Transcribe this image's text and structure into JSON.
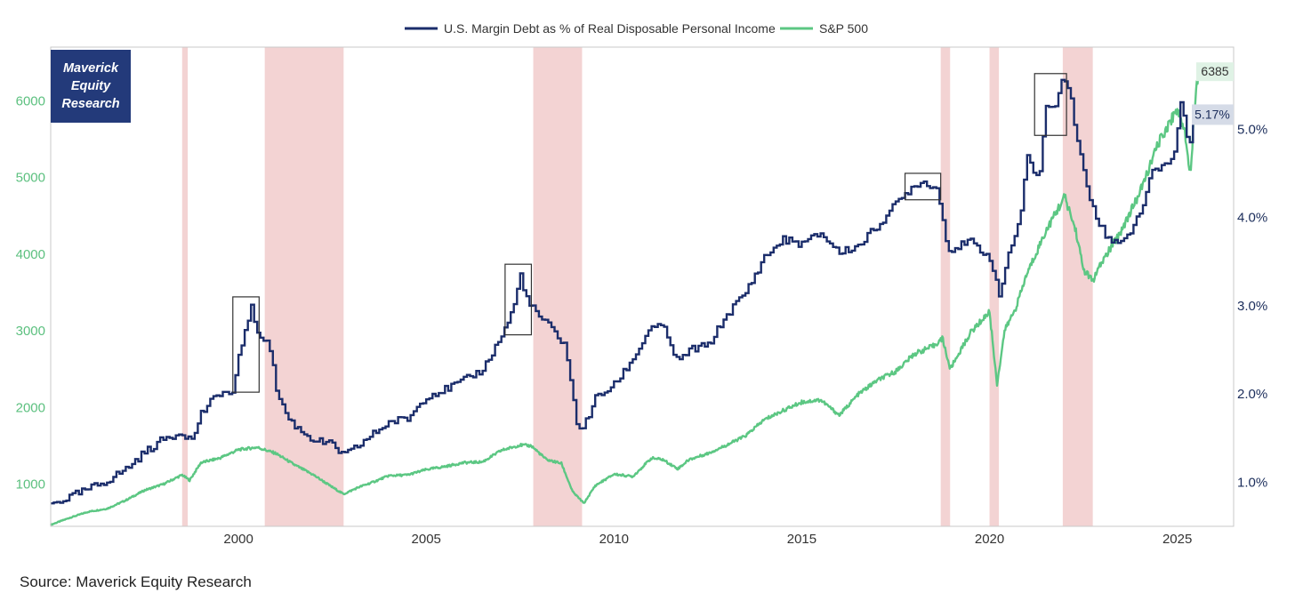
{
  "logo": {
    "line1": "Maverick",
    "line2": "Equity",
    "line3": "Research"
  },
  "source": "Source: Maverick Equity Research",
  "colors": {
    "margin": "#1b2d6b",
    "sp500": "#5cc783",
    "recession": "#f3d3d3",
    "box": "#333333"
  },
  "chart_data": {
    "type": "line",
    "title": "",
    "legend_position": "top-center",
    "grid": false,
    "x_ticks": [
      2000,
      2005,
      2010,
      2015,
      2020,
      2025
    ],
    "xlim": [
      1995.0,
      2026.5
    ],
    "y_left": {
      "ticks": [
        1000,
        2000,
        3000,
        4000,
        5000,
        6000
      ],
      "range": [
        450,
        6700
      ]
    },
    "y_right": {
      "ticks": [
        "1.0%",
        "2.0%",
        "3.0%",
        "4.0%",
        "5.0%"
      ],
      "tick_values": [
        1.0,
        2.0,
        3.0,
        4.0,
        5.0
      ],
      "range": [
        0.5,
        5.93
      ]
    },
    "recessions": [
      [
        1998.5,
        1998.65
      ],
      [
        2000.7,
        2002.8
      ],
      [
        2007.85,
        2009.15
      ],
      [
        2018.7,
        2018.95
      ],
      [
        2020.0,
        2020.25
      ],
      [
        2021.95,
        2022.75
      ]
    ],
    "highlight_boxes": [
      {
        "x": [
          1999.85,
          2000.55
        ],
        "y_right": [
          2.02,
          3.1
        ]
      },
      {
        "x": [
          2007.1,
          2007.8
        ],
        "y_right": [
          2.67,
          3.47
        ]
      },
      {
        "x": [
          2017.75,
          2018.7
        ],
        "y_right": [
          4.2,
          4.5
        ]
      },
      {
        "x": [
          2021.2,
          2022.05
        ],
        "y_right": [
          4.93,
          5.63
        ]
      }
    ],
    "series": [
      {
        "name": "U.S. Margin Debt as % of Real Disposable Personal Income",
        "axis": "right",
        "x": [
          1995.0,
          1995.5,
          1996.0,
          1996.5,
          1997.0,
          1997.5,
          1998.0,
          1998.5,
          1998.75,
          1999.0,
          1999.5,
          1999.85,
          2000.0,
          2000.2,
          2000.35,
          2000.5,
          2000.8,
          2001.0,
          2001.3,
          2001.6,
          2002.0,
          2002.5,
          2002.8,
          2003.0,
          2003.5,
          2004.0,
          2004.5,
          2005.0,
          2005.5,
          2006.0,
          2006.5,
          2007.0,
          2007.3,
          2007.5,
          2007.7,
          2008.0,
          2008.3,
          2008.7,
          2009.0,
          2009.2,
          2009.5,
          2010.0,
          2010.5,
          2011.0,
          2011.3,
          2011.7,
          2012.0,
          2012.5,
          2013.0,
          2013.5,
          2014.0,
          2014.5,
          2015.0,
          2015.5,
          2016.0,
          2016.5,
          2017.0,
          2017.5,
          2018.0,
          2018.3,
          2018.6,
          2018.9,
          2019.0,
          2019.5,
          2020.0,
          2020.25,
          2020.5,
          2020.8,
          2021.0,
          2021.3,
          2021.5,
          2021.7,
          2021.9,
          2022.1,
          2022.3,
          2022.6,
          2022.9,
          2023.2,
          2023.5,
          2023.8,
          2024.0,
          2024.3,
          2024.6,
          2024.9,
          2025.1,
          2025.3,
          2025.45
        ],
        "values": [
          0.75,
          0.83,
          0.92,
          1.02,
          1.15,
          1.34,
          1.49,
          1.57,
          1.47,
          1.78,
          2.02,
          2.0,
          2.4,
          2.8,
          3.0,
          2.65,
          2.62,
          2.05,
          1.73,
          1.6,
          1.48,
          1.42,
          1.3,
          1.35,
          1.52,
          1.68,
          1.72,
          1.98,
          2.05,
          2.15,
          2.28,
          2.66,
          2.95,
          3.35,
          3.03,
          2.88,
          2.75,
          2.55,
          1.65,
          1.63,
          1.95,
          2.1,
          2.4,
          2.78,
          2.75,
          2.35,
          2.5,
          2.55,
          2.9,
          3.15,
          3.55,
          3.75,
          3.7,
          3.82,
          3.6,
          3.68,
          3.9,
          4.15,
          4.38,
          4.4,
          4.32,
          3.62,
          3.65,
          3.72,
          3.55,
          3.1,
          3.6,
          3.94,
          4.72,
          4.4,
          5.27,
          5.2,
          5.58,
          5.5,
          4.95,
          4.3,
          3.95,
          3.72,
          3.75,
          3.86,
          4.05,
          4.5,
          4.6,
          4.68,
          5.35,
          4.78,
          5.17
        ]
      },
      {
        "name": "S&P 500",
        "axis": "left",
        "x": [
          1995.0,
          1995.5,
          1996.0,
          1996.5,
          1997.0,
          1997.5,
          1998.0,
          1998.5,
          1998.7,
          1999.0,
          1999.5,
          2000.0,
          2000.5,
          2001.0,
          2001.5,
          2002.0,
          2002.5,
          2002.8,
          2003.2,
          2003.6,
          2004.0,
          2004.5,
          2005.0,
          2005.5,
          2006.0,
          2006.5,
          2007.0,
          2007.5,
          2007.8,
          2008.2,
          2008.6,
          2008.9,
          2009.2,
          2009.5,
          2010.0,
          2010.5,
          2011.0,
          2011.3,
          2011.7,
          2012.0,
          2012.5,
          2013.0,
          2013.5,
          2014.0,
          2014.5,
          2015.0,
          2015.5,
          2016.0,
          2016.5,
          2017.0,
          2017.5,
          2018.0,
          2018.5,
          2018.75,
          2018.95,
          2019.5,
          2020.0,
          2020.2,
          2020.4,
          2020.7,
          2021.0,
          2021.5,
          2022.0,
          2022.3,
          2022.5,
          2022.75,
          2023.0,
          2023.5,
          2024.0,
          2024.5,
          2025.0,
          2025.2,
          2025.35,
          2025.5,
          2025.58
        ],
        "values": [
          470,
          560,
          640,
          680,
          790,
          920,
          1000,
          1120,
          1050,
          1280,
          1340,
          1450,
          1480,
          1400,
          1250,
          1120,
          960,
          870,
          960,
          1030,
          1110,
          1120,
          1190,
          1230,
          1280,
          1290,
          1440,
          1510,
          1500,
          1320,
          1270,
          900,
          750,
          980,
          1130,
          1100,
          1340,
          1320,
          1200,
          1320,
          1400,
          1510,
          1630,
          1840,
          1960,
          2070,
          2100,
          1900,
          2170,
          2350,
          2470,
          2700,
          2800,
          2900,
          2500,
          2980,
          3250,
          2300,
          3000,
          3300,
          3750,
          4300,
          4750,
          4300,
          3800,
          3650,
          3900,
          4300,
          4800,
          5450,
          5900,
          5600,
          5050,
          6200,
          6385
        ]
      }
    ],
    "end_labels": {
      "sp500": "6385",
      "margin": "5.17%"
    }
  }
}
